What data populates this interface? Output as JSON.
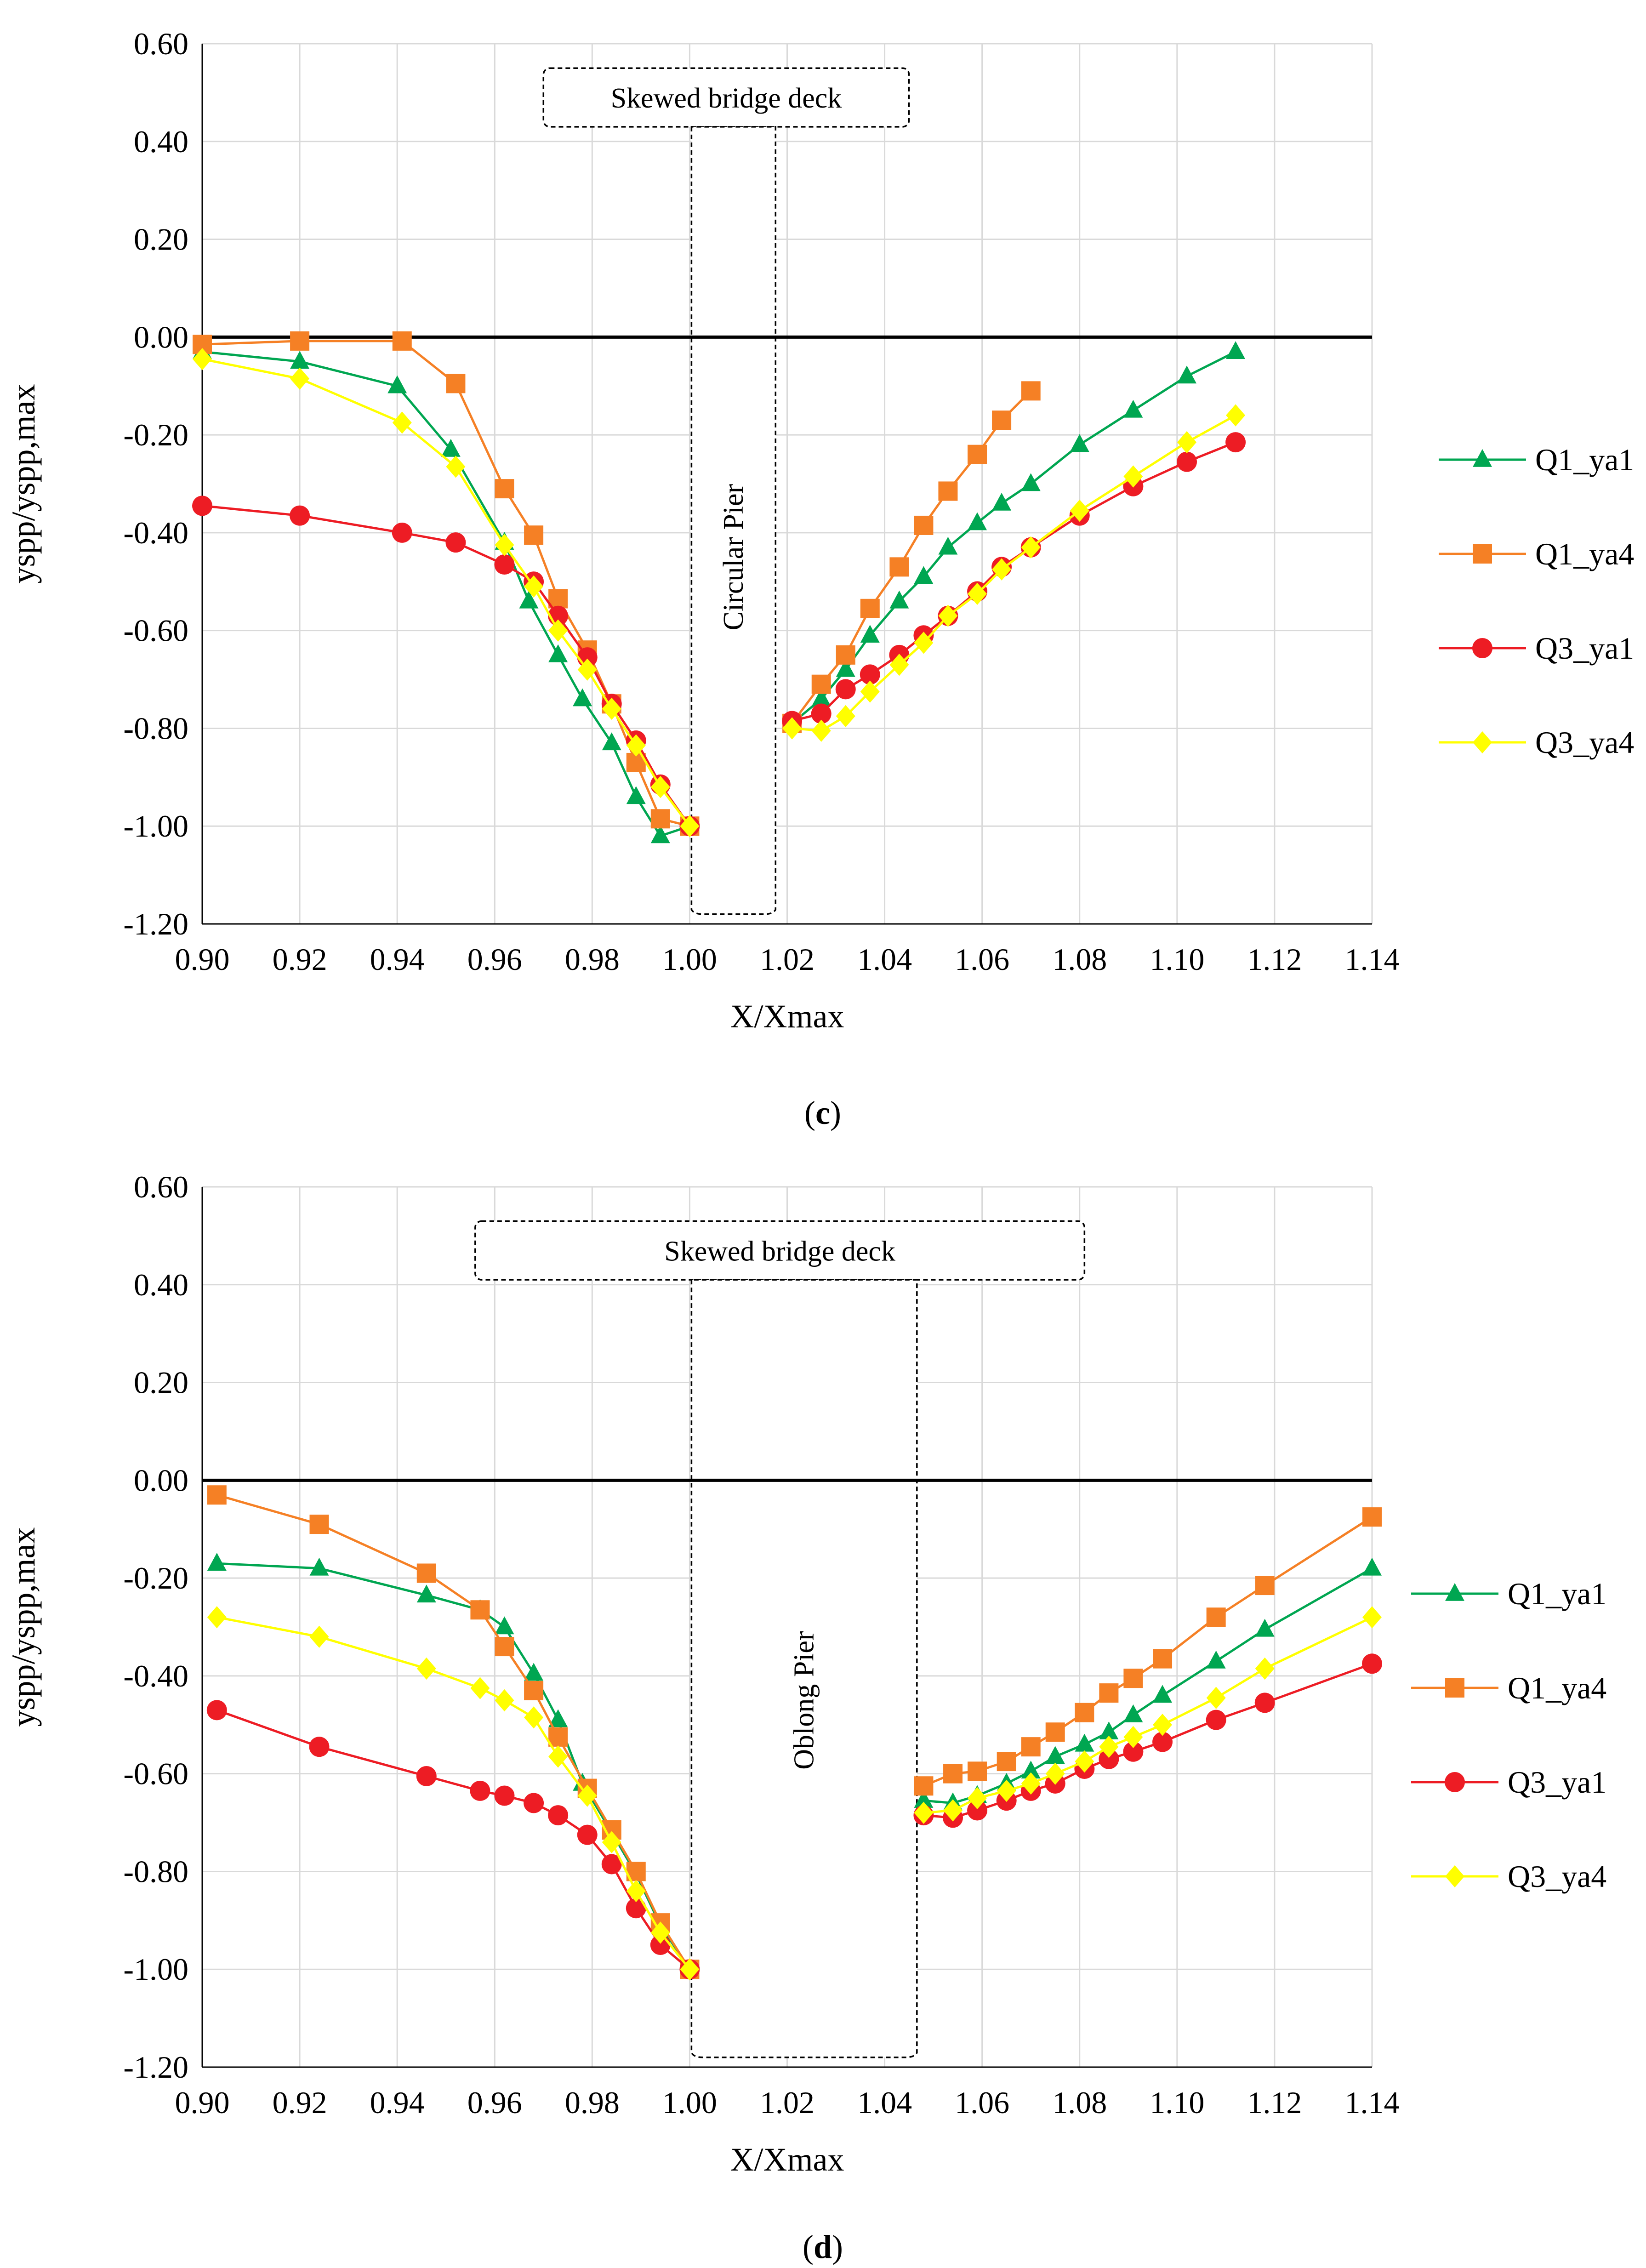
{
  "chart_data": [
    {
      "type": "line",
      "panel_label": "c",
      "xlabel": "X/Xmax",
      "ylabel": "yspp/yspp,max",
      "xlim": [
        0.9,
        1.14
      ],
      "ylim": [
        -1.2,
        0.6
      ],
      "xticks": [
        "0.90",
        "0.92",
        "0.94",
        "0.96",
        "0.98",
        "1.00",
        "1.02",
        "1.04",
        "1.06",
        "1.08",
        "1.10",
        "1.12",
        "1.14"
      ],
      "yticks": [
        "0.60",
        "0.40",
        "0.20",
        "0.00",
        "-0.20",
        "-0.40",
        "-0.60",
        "-0.80",
        "-1.00",
        "-1.20"
      ],
      "annotations": {
        "deck": "Skewed bridge deck",
        "pier": "Circular Pier"
      },
      "pier_extent": [
        1.0,
        1.018
      ],
      "deck_extent": [
        0.97,
        1.045
      ],
      "legend_position": "right",
      "series": [
        {
          "name": "Q1_ya1",
          "color": "#00a651",
          "marker": "triangle",
          "segments": [
            [
              [
                0.9,
                -0.03
              ],
              [
                0.92,
                -0.05
              ],
              [
                0.94,
                -0.1
              ],
              [
                0.951,
                -0.23
              ],
              [
                0.962,
                -0.42
              ],
              [
                0.967,
                -0.54
              ],
              [
                0.973,
                -0.65
              ],
              [
                0.978,
                -0.74
              ],
              [
                0.984,
                -0.83
              ],
              [
                0.989,
                -0.94
              ],
              [
                0.994,
                -1.02
              ],
              [
                1.0,
                -1.0
              ]
            ],
            [
              [
                1.021,
                -0.79
              ],
              [
                1.027,
                -0.74
              ],
              [
                1.032,
                -0.68
              ],
              [
                1.037,
                -0.61
              ],
              [
                1.043,
                -0.54
              ],
              [
                1.048,
                -0.49
              ],
              [
                1.053,
                -0.43
              ],
              [
                1.059,
                -0.38
              ],
              [
                1.064,
                -0.34
              ],
              [
                1.07,
                -0.3
              ],
              [
                1.08,
                -0.22
              ],
              [
                1.091,
                -0.15
              ],
              [
                1.102,
                -0.08
              ],
              [
                1.112,
                -0.03
              ]
            ]
          ]
        },
        {
          "name": "Q1_ya4",
          "color": "#f58025",
          "marker": "square",
          "segments": [
            [
              [
                0.9,
                -0.015
              ],
              [
                0.92,
                -0.008
              ],
              [
                0.941,
                -0.008
              ],
              [
                0.952,
                -0.095
              ],
              [
                0.962,
                -0.31
              ],
              [
                0.968,
                -0.405
              ],
              [
                0.973,
                -0.535
              ],
              [
                0.979,
                -0.64
              ],
              [
                0.984,
                -0.75
              ],
              [
                0.989,
                -0.87
              ],
              [
                0.994,
                -0.985
              ],
              [
                1.0,
                -1.0
              ]
            ],
            [
              [
                1.021,
                -0.79
              ],
              [
                1.027,
                -0.71
              ],
              [
                1.032,
                -0.65
              ],
              [
                1.037,
                -0.555
              ],
              [
                1.043,
                -0.47
              ],
              [
                1.048,
                -0.385
              ],
              [
                1.053,
                -0.315
              ],
              [
                1.059,
                -0.24
              ],
              [
                1.064,
                -0.17
              ],
              [
                1.07,
                -0.11
              ]
            ]
          ]
        },
        {
          "name": "Q3_ya1",
          "color": "#ed1c24",
          "marker": "circle",
          "segments": [
            [
              [
                0.9,
                -0.345
              ],
              [
                0.92,
                -0.365
              ],
              [
                0.941,
                -0.4
              ],
              [
                0.952,
                -0.42
              ],
              [
                0.962,
                -0.465
              ],
              [
                0.968,
                -0.5
              ],
              [
                0.973,
                -0.57
              ],
              [
                0.979,
                -0.655
              ],
              [
                0.984,
                -0.75
              ],
              [
                0.989,
                -0.825
              ],
              [
                0.994,
                -0.915
              ],
              [
                1.0,
                -1.0
              ]
            ],
            [
              [
                1.021,
                -0.785
              ],
              [
                1.027,
                -0.77
              ],
              [
                1.032,
                -0.72
              ],
              [
                1.037,
                -0.69
              ],
              [
                1.043,
                -0.65
              ],
              [
                1.048,
                -0.61
              ],
              [
                1.053,
                -0.57
              ],
              [
                1.059,
                -0.52
              ],
              [
                1.064,
                -0.47
              ],
              [
                1.07,
                -0.43
              ],
              [
                1.08,
                -0.365
              ],
              [
                1.091,
                -0.305
              ],
              [
                1.102,
                -0.255
              ],
              [
                1.112,
                -0.215
              ]
            ]
          ]
        },
        {
          "name": "Q3_ya4",
          "color": "#ffff00",
          "marker": "diamond",
          "segments": [
            [
              [
                0.9,
                -0.045
              ],
              [
                0.92,
                -0.085
              ],
              [
                0.941,
                -0.175
              ],
              [
                0.952,
                -0.265
              ],
              [
                0.962,
                -0.425
              ],
              [
                0.968,
                -0.51
              ],
              [
                0.973,
                -0.6
              ],
              [
                0.979,
                -0.68
              ],
              [
                0.984,
                -0.76
              ],
              [
                0.989,
                -0.835
              ],
              [
                0.994,
                -0.92
              ],
              [
                1.0,
                -1.0
              ]
            ],
            [
              [
                1.021,
                -0.8
              ],
              [
                1.027,
                -0.805
              ],
              [
                1.032,
                -0.775
              ],
              [
                1.037,
                -0.725
              ],
              [
                1.043,
                -0.67
              ],
              [
                1.048,
                -0.625
              ],
              [
                1.053,
                -0.57
              ],
              [
                1.059,
                -0.525
              ],
              [
                1.064,
                -0.475
              ],
              [
                1.07,
                -0.43
              ],
              [
                1.08,
                -0.355
              ],
              [
                1.091,
                -0.285
              ],
              [
                1.102,
                -0.215
              ],
              [
                1.112,
                -0.16
              ]
            ]
          ]
        }
      ]
    },
    {
      "type": "line",
      "panel_label": "d",
      "xlabel": "X/Xmax",
      "ylabel": "yspp/yspp,max",
      "xlim": [
        0.9,
        1.14
      ],
      "ylim": [
        -1.2,
        0.6
      ],
      "xticks": [
        "0.90",
        "0.92",
        "0.94",
        "0.96",
        "0.98",
        "1.00",
        "1.02",
        "1.04",
        "1.06",
        "1.08",
        "1.10",
        "1.12",
        "1.14"
      ],
      "yticks": [
        "0.60",
        "0.40",
        "0.20",
        "0.00",
        "-0.20",
        "-0.40",
        "-0.60",
        "-0.80",
        "-1.00",
        "-1.20"
      ],
      "annotations": {
        "deck": "Skewed bridge deck",
        "pier": "Oblong Pier"
      },
      "pier_extent": [
        1.0,
        1.047
      ],
      "deck_extent": [
        0.956,
        1.081
      ],
      "legend_position": "right",
      "series": [
        {
          "name": "Q1_ya1",
          "color": "#00a651",
          "marker": "triangle",
          "segments": [
            [
              [
                0.903,
                -0.17
              ],
              [
                0.924,
                -0.18
              ],
              [
                0.946,
                -0.235
              ],
              [
                0.957,
                -0.265
              ],
              [
                0.962,
                -0.3
              ],
              [
                0.968,
                -0.395
              ],
              [
                0.973,
                -0.49
              ],
              [
                0.978,
                -0.62
              ],
              [
                0.984,
                -0.72
              ],
              [
                0.989,
                -0.805
              ],
              [
                0.994,
                -0.91
              ],
              [
                1.0,
                -1.0
              ]
            ],
            [
              [
                1.048,
                -0.655
              ],
              [
                1.054,
                -0.66
              ],
              [
                1.059,
                -0.645
              ],
              [
                1.065,
                -0.62
              ],
              [
                1.07,
                -0.595
              ],
              [
                1.075,
                -0.565
              ],
              [
                1.081,
                -0.54
              ],
              [
                1.086,
                -0.515
              ],
              [
                1.091,
                -0.48
              ],
              [
                1.097,
                -0.44
              ],
              [
                1.108,
                -0.37
              ],
              [
                1.118,
                -0.305
              ],
              [
                1.14,
                -0.18
              ]
            ]
          ]
        },
        {
          "name": "Q1_ya4",
          "color": "#f58025",
          "marker": "square",
          "segments": [
            [
              [
                0.903,
                -0.03
              ],
              [
                0.924,
                -0.09
              ],
              [
                0.946,
                -0.19
              ],
              [
                0.957,
                -0.265
              ],
              [
                0.962,
                -0.34
              ],
              [
                0.968,
                -0.43
              ],
              [
                0.973,
                -0.525
              ],
              [
                0.979,
                -0.63
              ],
              [
                0.984,
                -0.715
              ],
              [
                0.989,
                -0.8
              ],
              [
                0.994,
                -0.905
              ],
              [
                1.0,
                -1.0
              ]
            ],
            [
              [
                1.048,
                -0.625
              ],
              [
                1.054,
                -0.6
              ],
              [
                1.059,
                -0.595
              ],
              [
                1.065,
                -0.575
              ],
              [
                1.07,
                -0.545
              ],
              [
                1.075,
                -0.515
              ],
              [
                1.081,
                -0.475
              ],
              [
                1.086,
                -0.435
              ],
              [
                1.091,
                -0.405
              ],
              [
                1.097,
                -0.365
              ],
              [
                1.108,
                -0.28
              ],
              [
                1.118,
                -0.215
              ],
              [
                1.14,
                -0.075
              ]
            ]
          ]
        },
        {
          "name": "Q3_ya1",
          "color": "#ed1c24",
          "marker": "circle",
          "segments": [
            [
              [
                0.903,
                -0.47
              ],
              [
                0.924,
                -0.545
              ],
              [
                0.946,
                -0.605
              ],
              [
                0.957,
                -0.635
              ],
              [
                0.962,
                -0.645
              ],
              [
                0.968,
                -0.66
              ],
              [
                0.973,
                -0.685
              ],
              [
                0.979,
                -0.725
              ],
              [
                0.984,
                -0.785
              ],
              [
                0.989,
                -0.875
              ],
              [
                0.994,
                -0.95
              ],
              [
                1.0,
                -1.0
              ]
            ],
            [
              [
                1.048,
                -0.685
              ],
              [
                1.054,
                -0.69
              ],
              [
                1.059,
                -0.675
              ],
              [
                1.065,
                -0.655
              ],
              [
                1.07,
                -0.635
              ],
              [
                1.075,
                -0.62
              ],
              [
                1.081,
                -0.59
              ],
              [
                1.086,
                -0.57
              ],
              [
                1.091,
                -0.555
              ],
              [
                1.097,
                -0.535
              ],
              [
                1.108,
                -0.49
              ],
              [
                1.118,
                -0.455
              ],
              [
                1.14,
                -0.375
              ]
            ]
          ]
        },
        {
          "name": "Q3_ya4",
          "color": "#ffff00",
          "marker": "diamond",
          "segments": [
            [
              [
                0.903,
                -0.28
              ],
              [
                0.924,
                -0.32
              ],
              [
                0.946,
                -0.385
              ],
              [
                0.957,
                -0.425
              ],
              [
                0.962,
                -0.45
              ],
              [
                0.968,
                -0.485
              ],
              [
                0.973,
                -0.565
              ],
              [
                0.979,
                -0.645
              ],
              [
                0.984,
                -0.74
              ],
              [
                0.989,
                -0.84
              ],
              [
                0.994,
                -0.925
              ],
              [
                1.0,
                -1.0
              ]
            ],
            [
              [
                1.048,
                -0.68
              ],
              [
                1.054,
                -0.675
              ],
              [
                1.059,
                -0.65
              ],
              [
                1.065,
                -0.635
              ],
              [
                1.07,
                -0.62
              ],
              [
                1.075,
                -0.6
              ],
              [
                1.081,
                -0.575
              ],
              [
                1.086,
                -0.545
              ],
              [
                1.091,
                -0.525
              ],
              [
                1.097,
                -0.5
              ],
              [
                1.108,
                -0.445
              ],
              [
                1.118,
                -0.385
              ],
              [
                1.14,
                -0.28
              ]
            ]
          ]
        }
      ]
    }
  ]
}
